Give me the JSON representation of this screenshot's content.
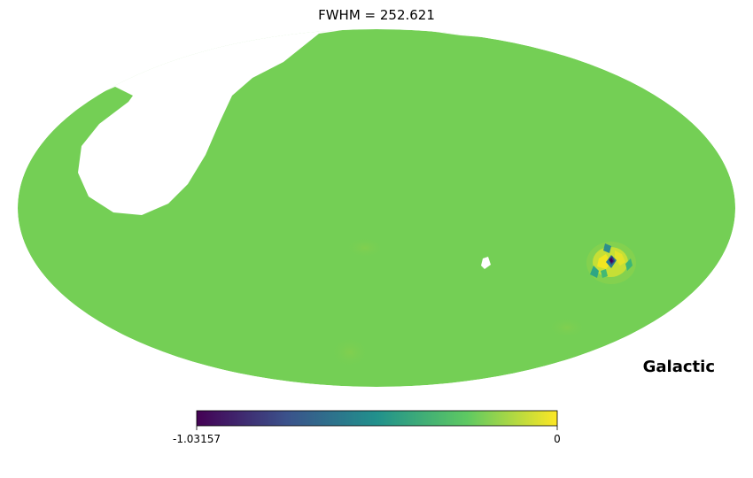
{
  "chart_data": {
    "type": "heatmap",
    "projection": "mollweide",
    "title": "FWHM = 252.621",
    "coord_label": "Galactic",
    "colormap": "viridis",
    "colormap_stops": [
      "#440154",
      "#3b528b",
      "#21918c",
      "#5ec962",
      "#fde725"
    ],
    "background_value_color": "#74cf55",
    "masked_color": "#ffffff",
    "colorbar": {
      "min": -1.03157,
      "max": 0,
      "min_label": "-1.03157",
      "max_label": "0",
      "orientation": "horizontal"
    }
  }
}
